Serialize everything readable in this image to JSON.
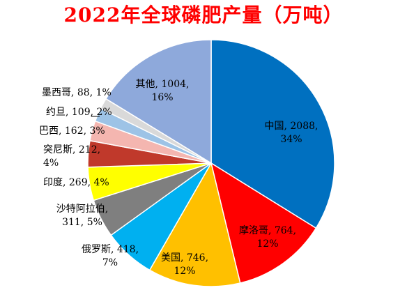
{
  "chart_data": {
    "type": "pie",
    "title": "2022年全球磷肥产量（万吨）",
    "unit": "万吨",
    "slices": [
      {
        "name": "中国",
        "value": 2088,
        "percent": "34%",
        "color": "#0070c0",
        "label_lines": [
          "中国, 2088,",
          "34%"
        ]
      },
      {
        "name": "摩洛哥",
        "value": 764,
        "percent": "12%",
        "color": "#ff0000",
        "label_lines": [
          "摩洛哥, 764,",
          "12%"
        ]
      },
      {
        "name": "美国",
        "value": 746,
        "percent": "12%",
        "color": "#ffc000",
        "label_lines": [
          "美国, 746,",
          "12%"
        ]
      },
      {
        "name": "俄罗斯",
        "value": 418,
        "percent": "7%",
        "color": "#00b0f0",
        "label_lines": [
          "俄罗斯, 418,",
          "7%"
        ]
      },
      {
        "name": "沙特阿拉伯",
        "value": 311,
        "percent": "5%",
        "color": "#7f7f7f",
        "label_lines": [
          "沙特阿拉伯,",
          "311, 5%"
        ]
      },
      {
        "name": "印度",
        "value": 269,
        "percent": "4%",
        "color": "#ffff00",
        "label_lines": [
          "印度, 269, 4%"
        ]
      },
      {
        "name": "突尼斯",
        "value": 212,
        "percent": "4%",
        "color": "#c0392b",
        "label_lines": [
          "突尼斯, 212,",
          "4%"
        ]
      },
      {
        "name": "巴西",
        "value": 162,
        "percent": "3%",
        "color": "#f4b6b0",
        "label_lines": [
          "巴西, 162, 3%"
        ]
      },
      {
        "name": "约旦",
        "value": 109,
        "percent": "2%",
        "color": "#9dc3e6",
        "label_lines": [
          "约旦, 109, 2%"
        ]
      },
      {
        "name": "墨西哥",
        "value": 88,
        "percent": "1%",
        "color": "#d9d9d9",
        "label_lines": [
          "墨西哥, 88, 1%"
        ]
      },
      {
        "name": "其他",
        "value": 1004,
        "percent": "16%",
        "color": "#8ea9db",
        "label_lines": [
          "其他, 1004,",
          "16%"
        ]
      }
    ]
  }
}
